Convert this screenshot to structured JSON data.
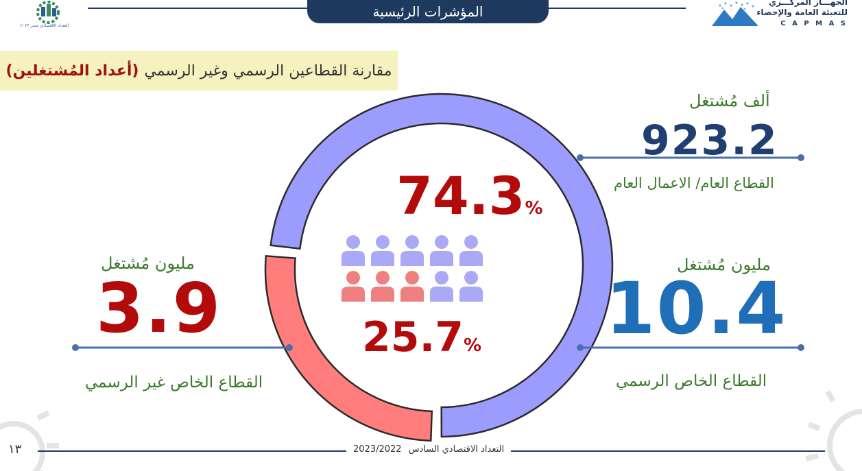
{
  "header": {
    "title": "المؤشرات الرئيسية",
    "logo_left_caption": "التعداد الاقتصادي مصر ٢٠٢٣",
    "logo_right_line1": "الجهـــاز المركـــزي",
    "logo_right_line2": "للتعبئة العامة والإحصاء",
    "logo_right_latin": "C A P M A S"
  },
  "subtitle": {
    "text": "مقارنة القطاعين الرسمي وغير الرسمي",
    "highlight": "(أعداد المُشتغلين)"
  },
  "stats": {
    "public": {
      "unit": "ألف مُشتغل",
      "value": "923.2",
      "label": "القطاع العام/ الاعمال العام"
    },
    "formal_private": {
      "unit": "مليون مُشتغل",
      "value": "10.4",
      "label": "القطاع الخاص الرسمي"
    },
    "informal_private": {
      "unit": "مليون مُشتغل",
      "value": "3.9",
      "label": "القطاع الخاص غير الرسمي"
    }
  },
  "chart_data": {
    "type": "pie",
    "categories": [
      "formal",
      "informal"
    ],
    "values": [
      74.3,
      25.7
    ],
    "value_labels": [
      "74.3",
      "25.7"
    ],
    "percent_sign": "%",
    "colors": [
      "#9c9cff",
      "#ff7d7d"
    ]
  },
  "people_icons": {
    "count": 10,
    "informal_count": 3,
    "formal_color": "#a9a9f5",
    "informal_color": "#f08080"
  },
  "footer": {
    "page_number": "١٣",
    "text": "التعداد الاقتصادي السادس",
    "year": "2023/2022"
  },
  "colors": {
    "navy": "#1f3a5f",
    "green_text": "#3a7a2a",
    "red_number": "#b30b0b",
    "blue_number": "#1f6fb8",
    "navy_number": "#1f3f70"
  }
}
